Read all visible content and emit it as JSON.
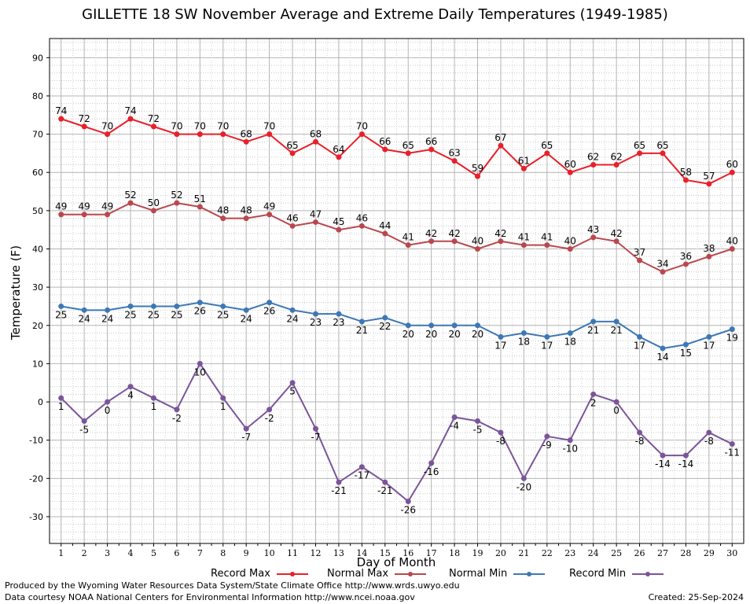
{
  "chart_data": {
    "type": "line",
    "title": "GILLETTE 18 SW November Average and Extreme Daily Temperatures (1949-1985)",
    "xlabel": "Day of Month",
    "ylabel": "Temperature (F)",
    "x": [
      1,
      2,
      3,
      4,
      5,
      6,
      7,
      8,
      9,
      10,
      11,
      12,
      13,
      14,
      15,
      16,
      17,
      18,
      19,
      20,
      21,
      22,
      23,
      24,
      25,
      26,
      27,
      28,
      29,
      30
    ],
    "xlim": [
      0.5,
      30.5
    ],
    "ylim": [
      -37,
      95
    ],
    "y_ticks": [
      -30,
      -20,
      -10,
      0,
      10,
      20,
      30,
      40,
      50,
      60,
      70,
      80,
      90
    ],
    "grid": true,
    "legend_position": "bottom",
    "series": [
      {
        "name": "Record Max",
        "color": "#e8202a",
        "values": [
          74,
          72,
          70,
          74,
          72,
          70,
          70,
          70,
          68,
          70,
          65,
          68,
          64,
          70,
          66,
          65,
          66,
          63,
          59,
          67,
          61,
          65,
          60,
          62,
          62,
          65,
          65,
          58,
          57,
          60
        ]
      },
      {
        "name": "Normal Max",
        "color": "#b9484e",
        "values": [
          49,
          49,
          49,
          52,
          50,
          52,
          51,
          48,
          48,
          49,
          46,
          47,
          45,
          46,
          44,
          41,
          42,
          42,
          40,
          42,
          41,
          41,
          40,
          43,
          42,
          37,
          34,
          36,
          38,
          40
        ]
      },
      {
        "name": "Normal Min",
        "color": "#3d78b5",
        "values": [
          25,
          24,
          24,
          25,
          25,
          25,
          26,
          25,
          24,
          26,
          24,
          23,
          23,
          21,
          22,
          20,
          20,
          20,
          20,
          17,
          18,
          17,
          18,
          21,
          21,
          17,
          14,
          15,
          17,
          19
        ]
      },
      {
        "name": "Record Min",
        "color": "#7a559a",
        "values": [
          1,
          -5,
          0,
          4,
          1,
          -2,
          10,
          1,
          -7,
          -2,
          5,
          -7,
          -21,
          -17,
          -21,
          -26,
          -16,
          -4,
          -5,
          -8,
          -20,
          -9,
          -10,
          2,
          0,
          -8,
          -14,
          -14,
          -8,
          -11
        ]
      }
    ]
  },
  "footer": {
    "produced_by": "Produced by the Wyoming Water Resources Data System/State Climate Office http://www.wrds.uwyo.edu",
    "data_courtesy": "Data courtesy NOAA National Centers for Environmental Information http://www.ncei.noaa.gov",
    "created": "Created:  25-Sep-2024"
  }
}
